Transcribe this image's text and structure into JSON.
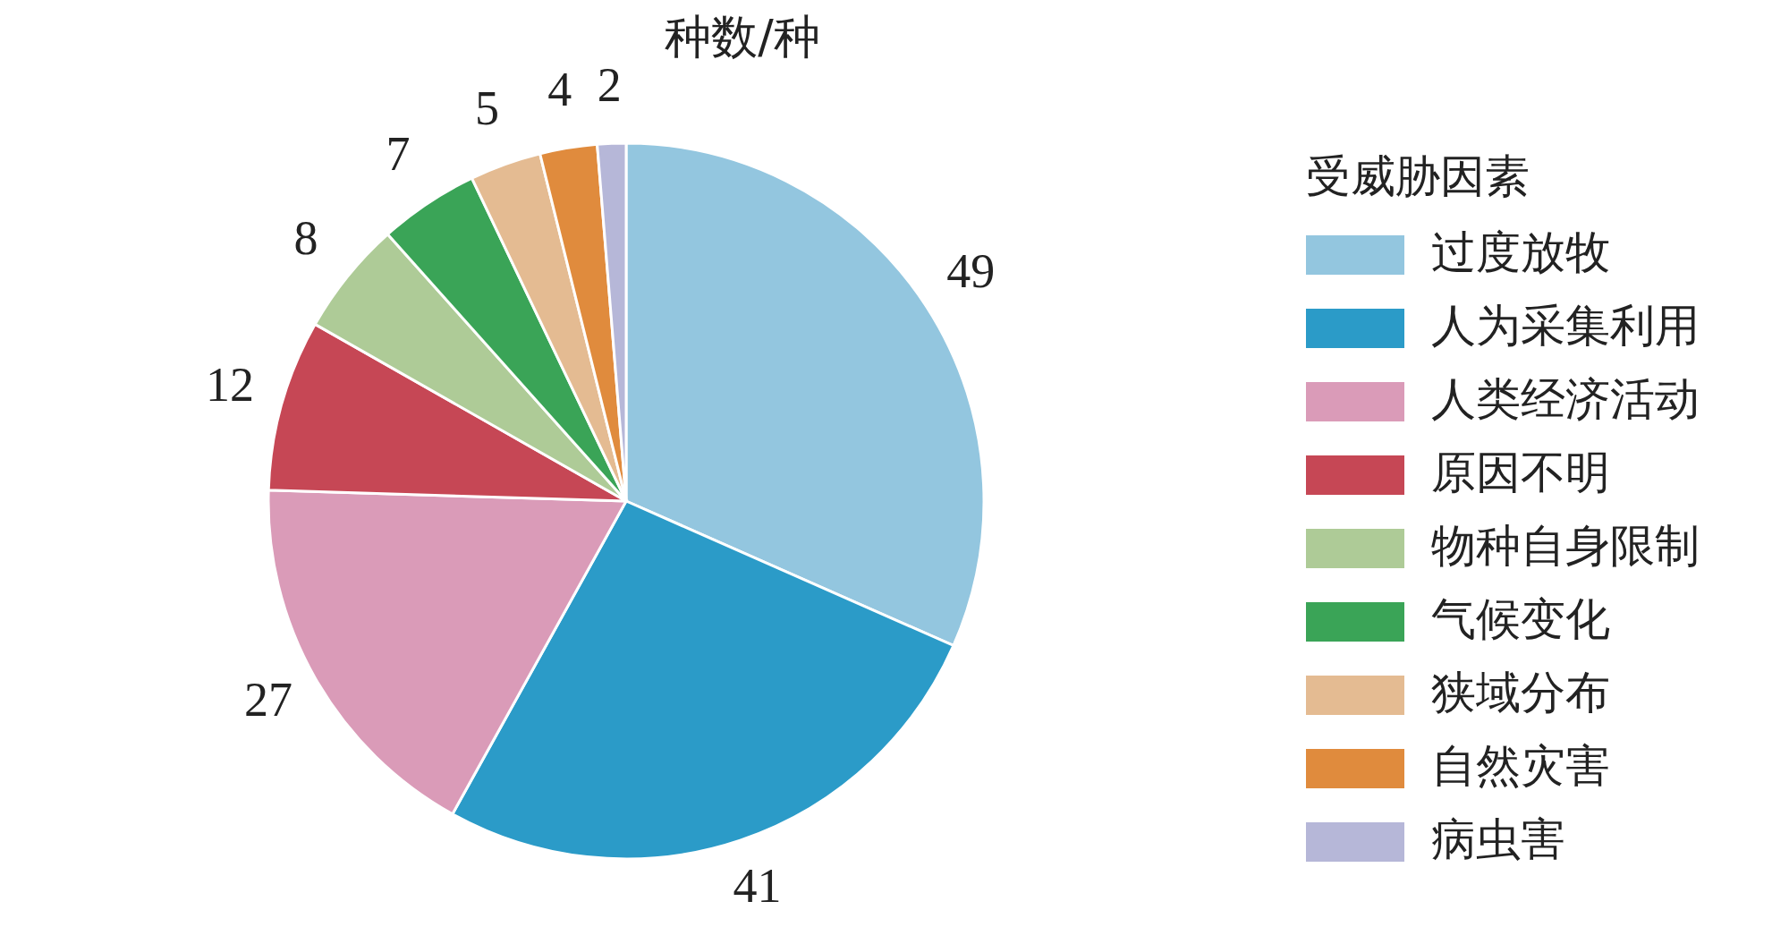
{
  "chart_data": {
    "type": "pie",
    "title": "种数/种",
    "legend_title": "受威胁因素",
    "categories": [
      "过度放牧",
      "人为采集利用",
      "人类经济活动",
      "原因不明",
      "物种自身限制",
      "气候变化",
      "狭域分布",
      "自然灾害",
      "病虫害"
    ],
    "values": [
      49,
      41,
      27,
      12,
      8,
      7,
      5,
      4,
      2
    ],
    "colors": [
      "#93c6df",
      "#2b9bc8",
      "#da9bb8",
      "#c64755",
      "#aecb97",
      "#3aa457",
      "#e4bb92",
      "#e08b3d",
      "#b6b7d8"
    ],
    "data_labels": true,
    "legend": "right"
  }
}
